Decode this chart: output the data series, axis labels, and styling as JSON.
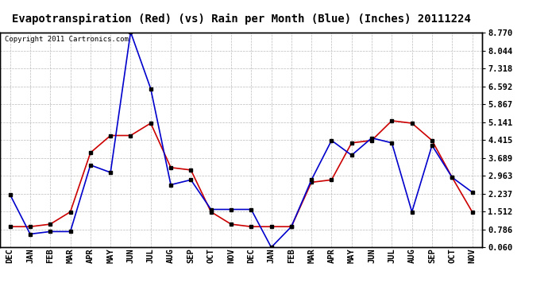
{
  "title": "Evapotranspiration (Red) (vs) Rain per Month (Blue) (Inches) 20111224",
  "copyright": "Copyright 2011 Cartronics.com",
  "x_labels": [
    "DEC",
    "JAN",
    "FEB",
    "MAR",
    "APR",
    "MAY",
    "JUN",
    "JUL",
    "AUG",
    "SEP",
    "OCT",
    "NOV",
    "DEC",
    "JAN",
    "FEB",
    "MAR",
    "APR",
    "MAY",
    "JUN",
    "JUL",
    "AUG",
    "SEP",
    "OCT",
    "NOV"
  ],
  "red_data": [
    0.9,
    0.9,
    1.0,
    1.5,
    3.9,
    4.6,
    4.6,
    5.1,
    3.3,
    3.2,
    1.5,
    1.0,
    0.9,
    0.9,
    0.9,
    2.7,
    2.8,
    4.3,
    4.4,
    5.2,
    5.1,
    4.4,
    2.9,
    1.5
  ],
  "blue_data": [
    2.2,
    0.6,
    0.7,
    0.7,
    3.4,
    3.1,
    8.8,
    6.5,
    2.6,
    2.8,
    1.6,
    1.6,
    1.6,
    0.06,
    0.9,
    2.8,
    4.4,
    3.8,
    4.5,
    4.3,
    1.5,
    4.2,
    2.9,
    2.3
  ],
  "y_ticks": [
    0.06,
    0.786,
    1.512,
    2.237,
    2.963,
    3.689,
    4.415,
    5.141,
    5.867,
    6.592,
    7.318,
    8.044,
    8.77
  ],
  "ylim": [
    0.06,
    8.77
  ],
  "red_color": "#cc0000",
  "blue_color": "#0000cc",
  "bg_color": "#ffffff",
  "grid_color": "#bbbbbb",
  "title_fontsize": 10,
  "copyright_fontsize": 6.5,
  "tick_fontsize": 7.5,
  "marker": "s",
  "marker_size": 3,
  "line_width": 1.2
}
